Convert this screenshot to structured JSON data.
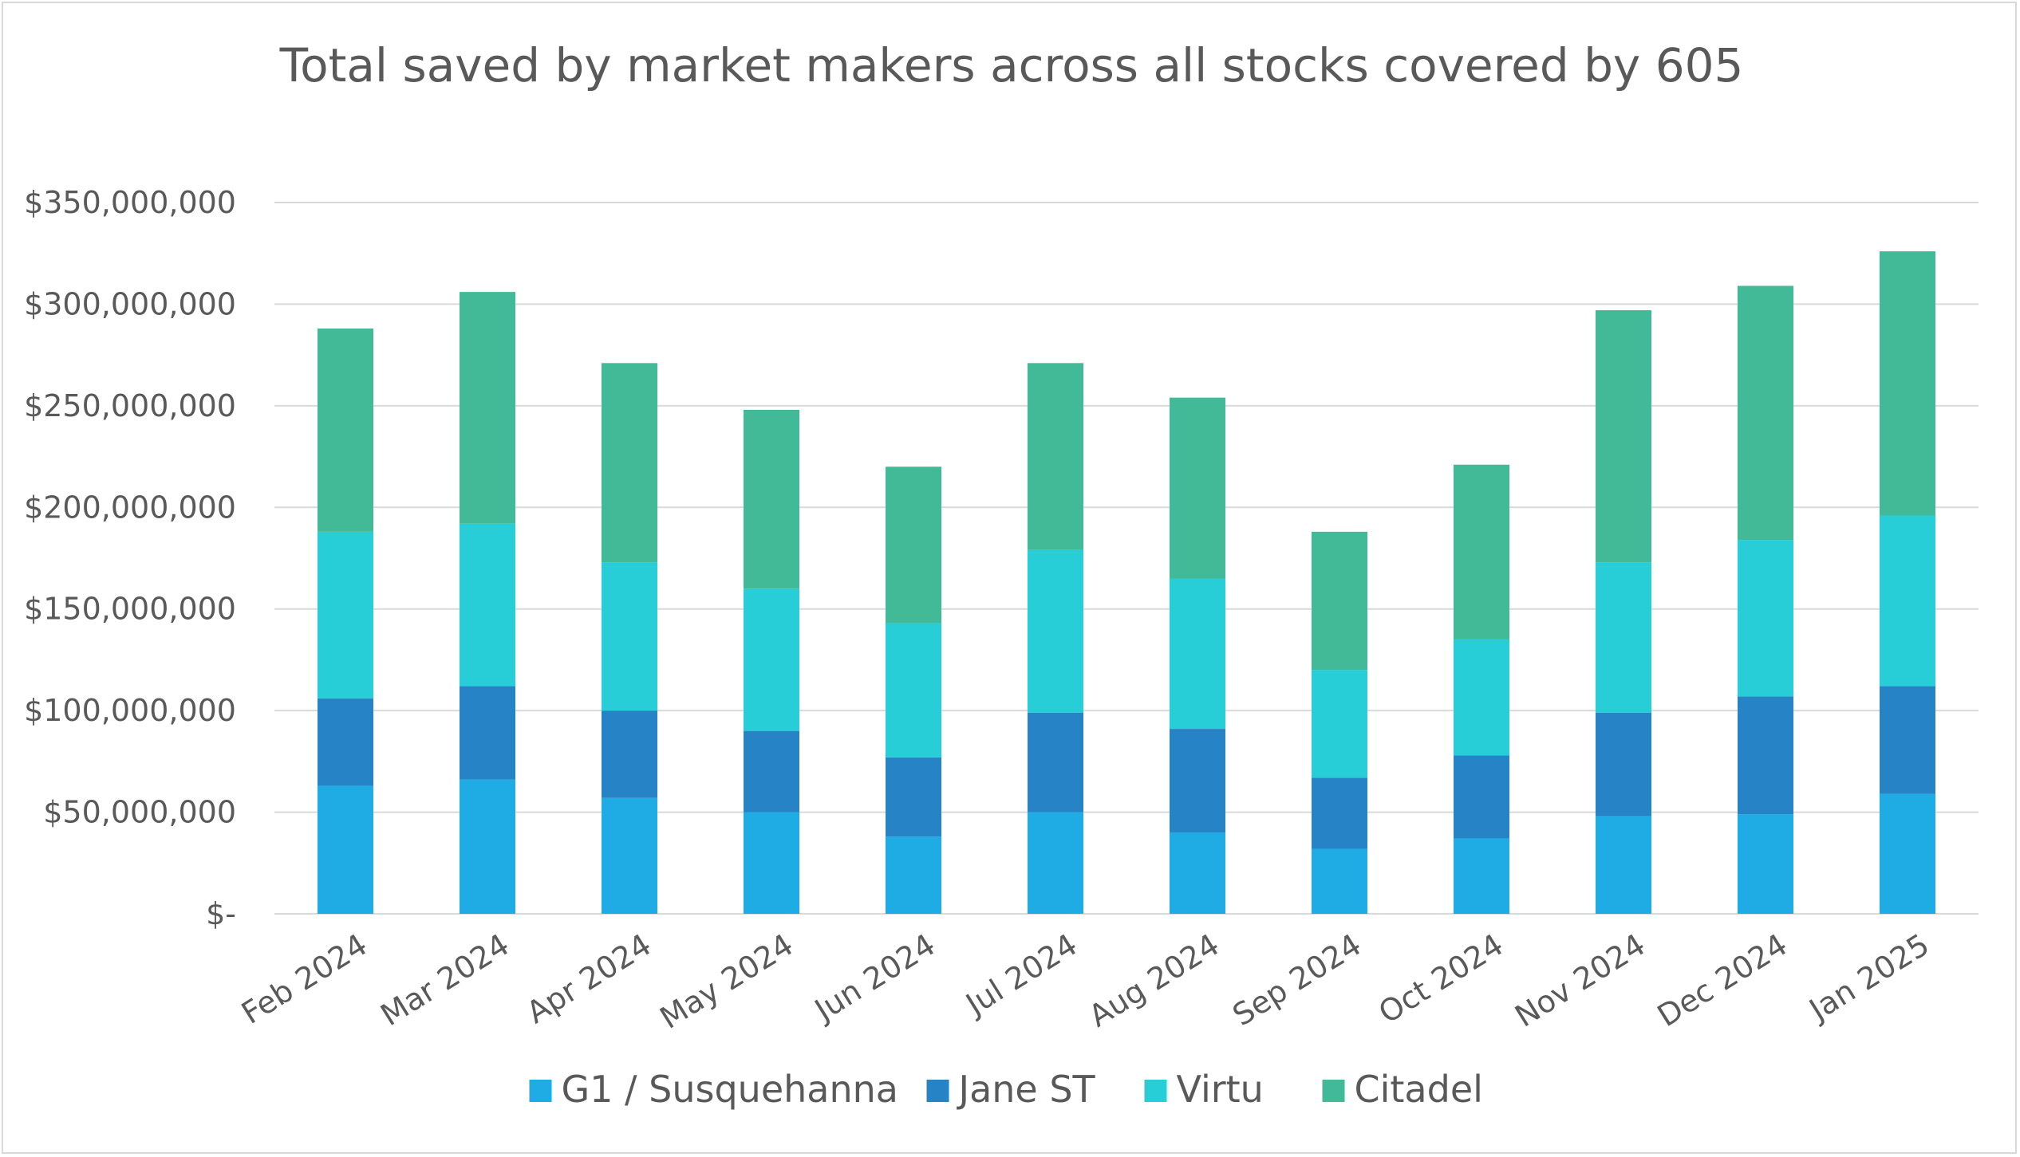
{
  "chart_data": {
    "type": "bar",
    "stacked": true,
    "title": "Total saved by market makers across all stocks covered by 605",
    "xlabel": "",
    "ylabel": "",
    "categories": [
      "Feb 2024",
      "Mar 2024",
      "Apr 2024",
      "May 2024",
      "Jun 2024",
      "Jul 2024",
      "Aug 2024",
      "Sep 2024",
      "Oct 2024",
      "Nov 2024",
      "Dec 2024",
      "Jan 2025"
    ],
    "series": [
      {
        "name": "G1 / Susquehanna",
        "color": "#1fabe3",
        "values": [
          63000000,
          66000000,
          57000000,
          50000000,
          38000000,
          50000000,
          40000000,
          32000000,
          37000000,
          48000000,
          49000000,
          59000000
        ]
      },
      {
        "name": "Jane ST",
        "color": "#2683c6",
        "values": [
          43000000,
          46000000,
          43000000,
          40000000,
          39000000,
          49000000,
          51000000,
          35000000,
          41000000,
          51000000,
          58000000,
          53000000
        ]
      },
      {
        "name": "Virtu",
        "color": "#27ced7",
        "values": [
          82000000,
          80000000,
          73000000,
          70000000,
          66000000,
          80000000,
          74000000,
          53000000,
          57000000,
          74000000,
          77000000,
          84000000
        ]
      },
      {
        "name": "Citadel",
        "color": "#42ba97",
        "values": [
          100000000,
          114000000,
          98000000,
          88000000,
          77000000,
          92000000,
          89000000,
          68000000,
          86000000,
          124000000,
          125000000,
          130000000
        ]
      }
    ],
    "ylim": [
      0,
      350000000
    ],
    "yticks": [
      0,
      50000000,
      100000000,
      150000000,
      200000000,
      250000000,
      300000000,
      350000000
    ],
    "ytick_labels": [
      "$-",
      "$50,000,000",
      "$100,000,000",
      "$150,000,000",
      "$200,000,000",
      "$250,000,000",
      "$300,000,000",
      "$350,000,000"
    ],
    "grid": true,
    "legend_position": "bottom"
  },
  "style": {
    "grid_color": "#d9d9d9",
    "text_color": "#595959",
    "axis_color": "#d9d9d9"
  }
}
